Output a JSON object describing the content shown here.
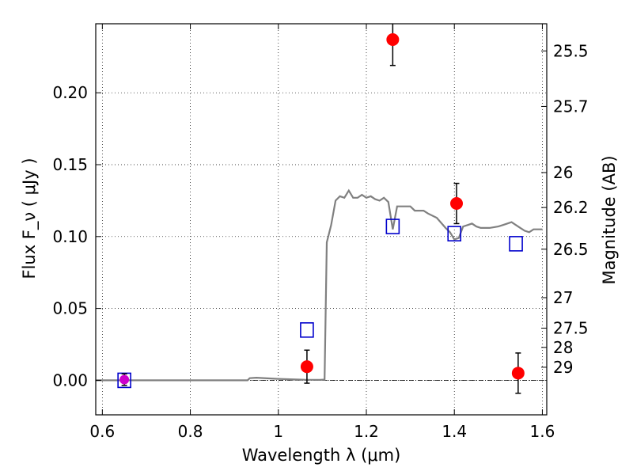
{
  "chart_data": {
    "type": "scatter",
    "xlabel": "Wavelength  λ (μm)",
    "ylabel": "Flux  F_ν  ( μJy )",
    "y2label": "Magnitude (AB)",
    "xlim": [
      0.585,
      1.61
    ],
    "ylim": [
      -0.024,
      0.248
    ],
    "grid": true,
    "x_ticks": [
      0.6,
      0.8,
      1.0,
      1.2,
      1.4,
      1.6
    ],
    "x_tick_labels": [
      "0.6",
      "0.8",
      "1",
      "1.2",
      "1.4",
      "1.6"
    ],
    "y_ticks": [
      0.0,
      0.05,
      0.1,
      0.15,
      0.2
    ],
    "y_tick_labels": [
      "0.00",
      "0.05",
      "0.10",
      "0.15",
      "0.20"
    ],
    "y2_ticks": [
      {
        "label": "25.5",
        "flux": 0.2291
      },
      {
        "label": "25.7",
        "flux": 0.1905
      },
      {
        "label": "26",
        "flux": 0.1445
      },
      {
        "label": "26.2",
        "flux": 0.1202
      },
      {
        "label": "26.5",
        "flux": 0.0912
      },
      {
        "label": "27",
        "flux": 0.0575
      },
      {
        "label": "27.5",
        "flux": 0.0363
      },
      {
        "label": "28",
        "flux": 0.0229
      },
      {
        "label": "29",
        "flux": 0.0091
      }
    ],
    "zero_line": 0.0,
    "colors": {
      "model": "#808080",
      "observed": "#ff0000",
      "model_photometry": "#0000cc",
      "errorbar": "#000000",
      "overlap": "#cc00cc"
    },
    "series": [
      {
        "kind": "line",
        "x": [
          0.585,
          0.93,
          0.935,
          0.95,
          1.0,
          1.06,
          1.095,
          1.105,
          1.11,
          1.12,
          1.13,
          1.14,
          1.15,
          1.16,
          1.17,
          1.18,
          1.19,
          1.2,
          1.21,
          1.22,
          1.23,
          1.24,
          1.25,
          1.26,
          1.27,
          1.28,
          1.3,
          1.31,
          1.32,
          1.33,
          1.34,
          1.36,
          1.38,
          1.39,
          1.4,
          1.41,
          1.42,
          1.43,
          1.44,
          1.45,
          1.46,
          1.47,
          1.48,
          1.5,
          1.51,
          1.52,
          1.53,
          1.54,
          1.55,
          1.56,
          1.57,
          1.58,
          1.59,
          1.6
        ],
        "y": [
          0.0,
          0.0,
          0.0015,
          0.0018,
          0.001,
          0.0004,
          0.0003,
          0.0005,
          0.096,
          0.108,
          0.125,
          0.128,
          0.127,
          0.132,
          0.127,
          0.127,
          0.129,
          0.127,
          0.128,
          0.126,
          0.125,
          0.127,
          0.124,
          0.105,
          0.121,
          0.121,
          0.121,
          0.118,
          0.118,
          0.118,
          0.116,
          0.113,
          0.106,
          0.103,
          0.098,
          0.099,
          0.107,
          0.108,
          0.109,
          0.107,
          0.106,
          0.106,
          0.106,
          0.107,
          0.108,
          0.109,
          0.11,
          0.108,
          0.106,
          0.104,
          0.103,
          0.105,
          0.105,
          0.105
        ]
      },
      {
        "kind": "observed",
        "x": [
          0.65,
          1.065,
          1.26,
          1.405,
          1.545
        ],
        "y": [
          0.0005,
          0.0095,
          0.237,
          0.123,
          0.005
        ],
        "err": [
          0.004,
          0.0115,
          0.018,
          0.014,
          0.014
        ]
      },
      {
        "kind": "model_photometry",
        "x": [
          0.65,
          1.065,
          1.26,
          1.4,
          1.54
        ],
        "y": [
          0.0,
          0.035,
          0.107,
          0.102,
          0.095
        ]
      }
    ]
  }
}
